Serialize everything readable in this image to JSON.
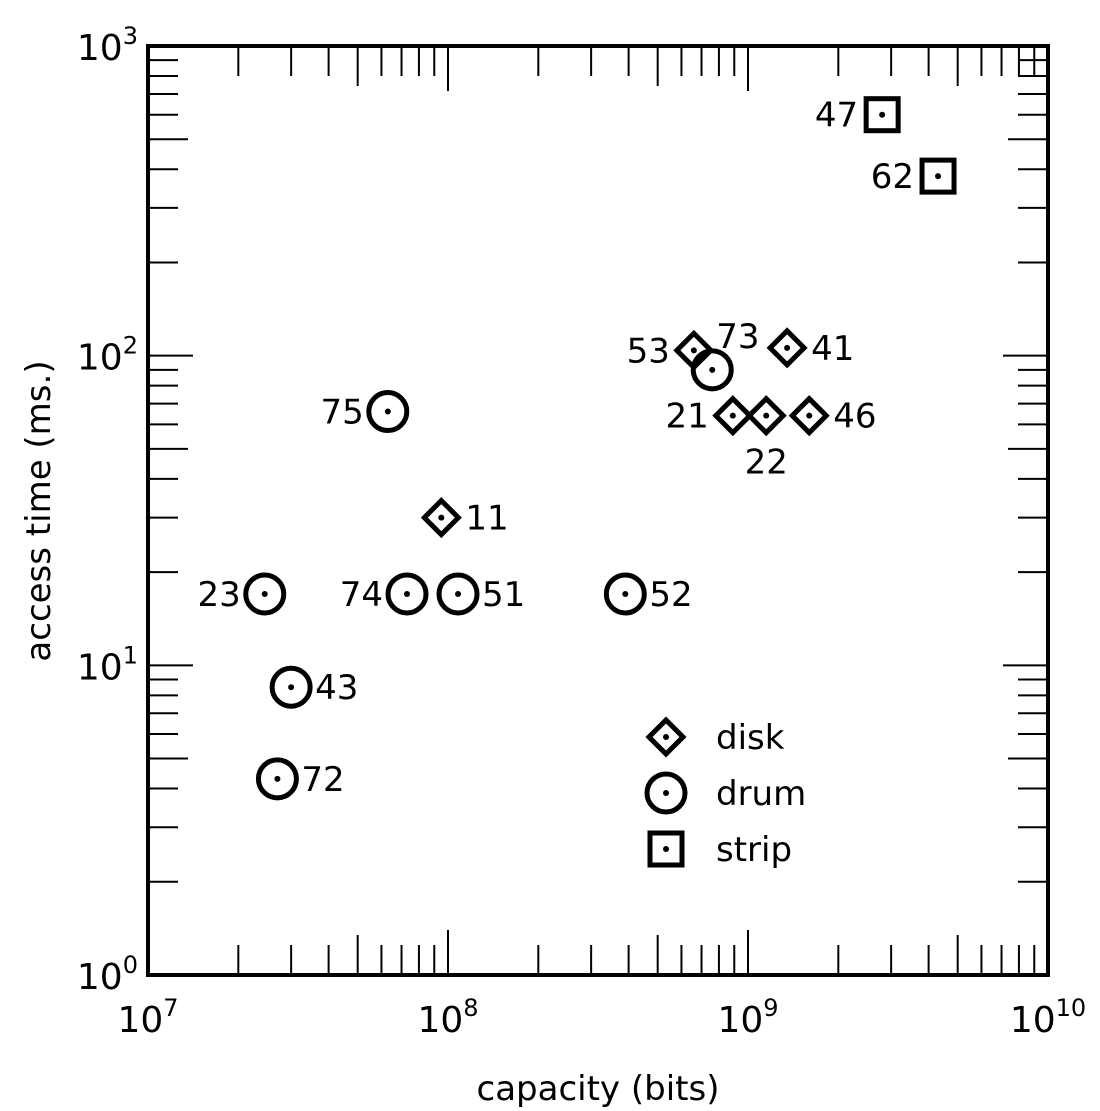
{
  "chart_data": {
    "type": "scatter",
    "title": "",
    "xlabel": "capacity (bits)",
    "ylabel": "access time (ms.)",
    "xscale": "log",
    "yscale": "log",
    "xlim": [
      10000000,
      10000000000
    ],
    "ylim": [
      1,
      1000
    ],
    "grid": false,
    "legend_position": "bottom-right",
    "x_tick_labels": [
      {
        "value": 10000000,
        "base": "10",
        "exp": "7"
      },
      {
        "value": 100000000,
        "base": "10",
        "exp": "8"
      },
      {
        "value": 1000000000,
        "base": "10",
        "exp": "9"
      },
      {
        "value": 10000000000,
        "base": "10",
        "exp": "10"
      }
    ],
    "y_tick_labels": [
      {
        "value": 1,
        "base": "10",
        "exp": "0"
      },
      {
        "value": 10,
        "base": "10",
        "exp": "1"
      },
      {
        "value": 100,
        "base": "10",
        "exp": "2"
      },
      {
        "value": 1000,
        "base": "10",
        "exp": "3"
      }
    ],
    "series": [
      {
        "name": "disk",
        "marker": "diamond",
        "points": [
          {
            "label": "11",
            "x": 95000000,
            "y": 30
          },
          {
            "label": "53",
            "x": 660000000,
            "y": 104
          },
          {
            "label": "41",
            "x": 1350000000,
            "y": 106
          },
          {
            "label": "21",
            "x": 890000000,
            "y": 64
          },
          {
            "label": "22",
            "x": 1150000000,
            "y": 64
          },
          {
            "label": "46",
            "x": 1600000000,
            "y": 64
          }
        ]
      },
      {
        "name": "drum",
        "marker": "circle",
        "points": [
          {
            "label": "75",
            "x": 63000000,
            "y": 66
          },
          {
            "label": "73",
            "x": 760000000,
            "y": 90
          },
          {
            "label": "23",
            "x": 24500000,
            "y": 17
          },
          {
            "label": "74",
            "x": 73000000,
            "y": 17
          },
          {
            "label": "51",
            "x": 108000000,
            "y": 17
          },
          {
            "label": "52",
            "x": 390000000,
            "y": 17
          },
          {
            "label": "43",
            "x": 30000000,
            "y": 8.5
          },
          {
            "label": "72",
            "x": 27000000,
            "y": 4.3
          }
        ]
      },
      {
        "name": "strip",
        "marker": "square",
        "points": [
          {
            "label": "47",
            "x": 2800000000,
            "y": 600
          },
          {
            "label": "62",
            "x": 4300000000,
            "y": 380
          }
        ]
      }
    ]
  }
}
